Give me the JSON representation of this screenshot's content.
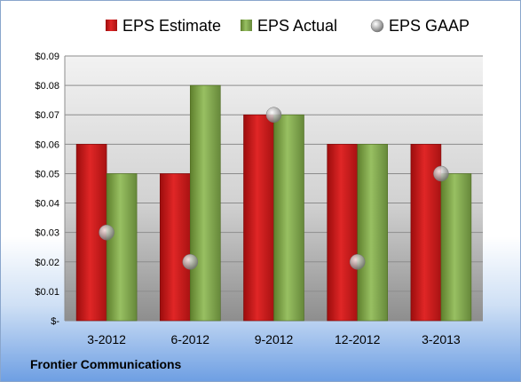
{
  "company": "Frontier Communications",
  "chart_data": {
    "type": "bar",
    "categories": [
      "3-2012",
      "6-2012",
      "9-2012",
      "12-2012",
      "3-2013"
    ],
    "series": [
      {
        "name": "EPS Estimate",
        "type": "bar",
        "color": "#d22020",
        "values": [
          0.06,
          0.05,
          0.07,
          0.06,
          0.06
        ]
      },
      {
        "name": "EPS Actual",
        "type": "bar",
        "color": "#8db356",
        "values": [
          0.05,
          0.08,
          0.07,
          0.06,
          0.05
        ]
      },
      {
        "name": "EPS GAAP",
        "type": "scatter",
        "color": "#a8a8a8",
        "values": [
          0.03,
          0.02,
          0.07,
          0.02,
          0.05
        ]
      }
    ],
    "ylim": [
      0,
      0.09
    ],
    "yticks": [
      0,
      0.01,
      0.02,
      0.03,
      0.04,
      0.05,
      0.06,
      0.07,
      0.08,
      0.09
    ],
    "ytick_labels": [
      "$-",
      "$0.01",
      "$0.02",
      "$0.03",
      "$0.04",
      "$0.05",
      "$0.06",
      "$0.07",
      "$0.08",
      "$0.09"
    ],
    "grid": true,
    "legend_position": "top"
  }
}
